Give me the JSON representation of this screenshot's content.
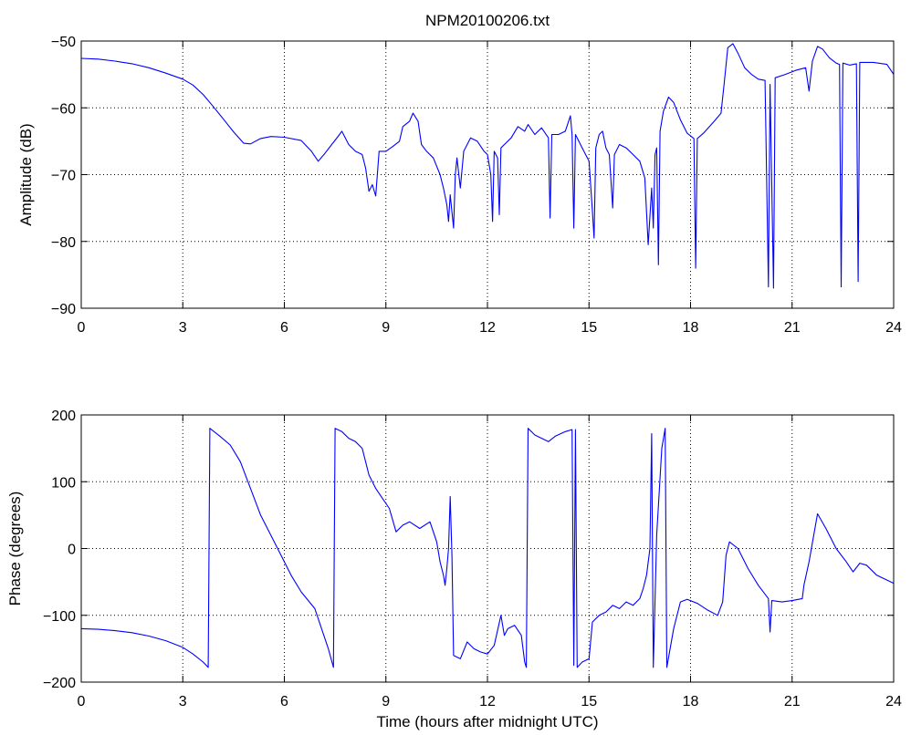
{
  "figure": {
    "title": "NPM20100206.txt",
    "xlabel": "Time (hours after midnight UTC)"
  },
  "chart_data": [
    {
      "type": "line",
      "title": "NPM20100206.txt",
      "xlabel": "",
      "ylabel": "Amplitude (dB)",
      "xlim": [
        0,
        24
      ],
      "ylim": [
        -90,
        -50
      ],
      "xticks": [
        0,
        3,
        6,
        9,
        12,
        15,
        18,
        21,
        24
      ],
      "yticks": [
        -90,
        -80,
        -70,
        -60,
        -50
      ],
      "grid": true,
      "line_color": "#0000ff",
      "series": [
        {
          "values": [
            [
              0,
              -52.6
            ],
            [
              0.5,
              -52.7
            ],
            [
              1,
              -53.0
            ],
            [
              1.5,
              -53.4
            ],
            [
              2,
              -54.0
            ],
            [
              2.5,
              -54.8
            ],
            [
              3,
              -55.7
            ],
            [
              3.3,
              -56.6
            ],
            [
              3.6,
              -58.0
            ],
            [
              3.9,
              -59.8
            ],
            [
              4.2,
              -61.7
            ],
            [
              4.5,
              -63.6
            ],
            [
              4.8,
              -65.3
            ],
            [
              5.0,
              -65.4
            ],
            [
              5.3,
              -64.6
            ],
            [
              5.6,
              -64.3
            ],
            [
              6.0,
              -64.4
            ],
            [
              6.5,
              -64.9
            ],
            [
              6.8,
              -66.5
            ],
            [
              7.0,
              -68.0
            ],
            [
              7.2,
              -66.8
            ],
            [
              7.4,
              -65.5
            ],
            [
              7.6,
              -64.2
            ],
            [
              7.7,
              -63.5
            ],
            [
              7.9,
              -65.5
            ],
            [
              8.1,
              -66.5
            ],
            [
              8.3,
              -67.0
            ],
            [
              8.4,
              -69.0
            ],
            [
              8.5,
              -72.5
            ],
            [
              8.6,
              -71.5
            ],
            [
              8.7,
              -73.2
            ],
            [
              8.8,
              -66.5
            ],
            [
              9.0,
              -66.5
            ],
            [
              9.2,
              -65.8
            ],
            [
              9.4,
              -65.0
            ],
            [
              9.5,
              -62.8
            ],
            [
              9.7,
              -62.0
            ],
            [
              9.8,
              -60.8
            ],
            [
              9.95,
              -62.0
            ],
            [
              10.05,
              -65.5
            ],
            [
              10.2,
              -66.5
            ],
            [
              10.4,
              -67.5
            ],
            [
              10.6,
              -70.0
            ],
            [
              10.7,
              -72.0
            ],
            [
              10.8,
              -74.5
            ],
            [
              10.85,
              -77.0
            ],
            [
              10.9,
              -73.0
            ],
            [
              11.0,
              -78.0
            ],
            [
              11.05,
              -70.0
            ],
            [
              11.1,
              -67.5
            ],
            [
              11.2,
              -72.0
            ],
            [
              11.3,
              -66.5
            ],
            [
              11.5,
              -64.5
            ],
            [
              11.7,
              -65.0
            ],
            [
              11.9,
              -66.5
            ],
            [
              12.0,
              -67.0
            ],
            [
              12.1,
              -70.0
            ],
            [
              12.15,
              -77.0
            ],
            [
              12.2,
              -66.5
            ],
            [
              12.3,
              -67.5
            ],
            [
              12.35,
              -76.0
            ],
            [
              12.4,
              -66.0
            ],
            [
              12.5,
              -65.5
            ],
            [
              12.7,
              -64.5
            ],
            [
              12.9,
              -62.8
            ],
            [
              13.1,
              -63.5
            ],
            [
              13.2,
              -62.5
            ],
            [
              13.4,
              -64.0
            ],
            [
              13.6,
              -63.0
            ],
            [
              13.8,
              -64.5
            ],
            [
              13.85,
              -76.5
            ],
            [
              13.9,
              -64.0
            ],
            [
              14.1,
              -64.0
            ],
            [
              14.3,
              -63.5
            ],
            [
              14.45,
              -61.2
            ],
            [
              14.5,
              -64.0
            ],
            [
              14.55,
              -78.0
            ],
            [
              14.6,
              -64.0
            ],
            [
              14.8,
              -66.0
            ],
            [
              15.0,
              -68.0
            ],
            [
              15.1,
              -75.5
            ],
            [
              15.15,
              -79.5
            ],
            [
              15.2,
              -66.0
            ],
            [
              15.3,
              -64.0
            ],
            [
              15.4,
              -63.5
            ],
            [
              15.5,
              -66.0
            ],
            [
              15.6,
              -67.0
            ],
            [
              15.7,
              -75.0
            ],
            [
              15.75,
              -67.0
            ],
            [
              15.9,
              -65.5
            ],
            [
              16.1,
              -66.0
            ],
            [
              16.3,
              -67.0
            ],
            [
              16.5,
              -68.0
            ],
            [
              16.65,
              -70.5
            ],
            [
              16.75,
              -80.5
            ],
            [
              16.85,
              -72.0
            ],
            [
              16.9,
              -78.0
            ],
            [
              16.95,
              -67.0
            ],
            [
              17.0,
              -66.0
            ],
            [
              17.05,
              -83.5
            ],
            [
              17.1,
              -63.5
            ],
            [
              17.2,
              -60.5
            ],
            [
              17.35,
              -58.4
            ],
            [
              17.5,
              -59.2
            ],
            [
              17.7,
              -61.8
            ],
            [
              17.9,
              -63.8
            ],
            [
              18.1,
              -64.6
            ],
            [
              18.15,
              -84.0
            ],
            [
              18.2,
              -64.6
            ],
            [
              18.4,
              -63.7
            ],
            [
              18.7,
              -62.0
            ],
            [
              18.9,
              -60.8
            ],
            [
              19.0,
              -56.0
            ],
            [
              19.1,
              -51.0
            ],
            [
              19.25,
              -50.4
            ],
            [
              19.4,
              -51.8
            ],
            [
              19.6,
              -54.0
            ],
            [
              19.8,
              -55.0
            ],
            [
              20.0,
              -55.7
            ],
            [
              20.2,
              -55.9
            ],
            [
              20.3,
              -86.8
            ],
            [
              20.35,
              -56.5
            ],
            [
              20.45,
              -87.0
            ],
            [
              20.5,
              -55.5
            ],
            [
              20.8,
              -55.0
            ],
            [
              21.1,
              -54.4
            ],
            [
              21.4,
              -54.0
            ],
            [
              21.5,
              -57.5
            ],
            [
              21.6,
              -53.0
            ],
            [
              21.75,
              -50.8
            ],
            [
              21.9,
              -51.2
            ],
            [
              22.1,
              -52.5
            ],
            [
              22.3,
              -53.3
            ],
            [
              22.4,
              -53.5
            ],
            [
              22.45,
              -86.8
            ],
            [
              22.5,
              -53.3
            ],
            [
              22.7,
              -53.6
            ],
            [
              22.9,
              -53.4
            ],
            [
              22.95,
              -86.0
            ],
            [
              23.0,
              -53.2
            ],
            [
              23.4,
              -53.2
            ],
            [
              23.8,
              -53.5
            ],
            [
              24.0,
              -55.0
            ]
          ]
        }
      ]
    },
    {
      "type": "line",
      "title": "",
      "xlabel": "Time (hours after midnight UTC)",
      "ylabel": "Phase (degrees)",
      "xlim": [
        0,
        24
      ],
      "ylim": [
        -200,
        200
      ],
      "xticks": [
        0,
        3,
        6,
        9,
        12,
        15,
        18,
        21,
        24
      ],
      "yticks": [
        -200,
        -100,
        0,
        100,
        200
      ],
      "grid": true,
      "line_color": "#0000ff",
      "series": [
        {
          "values": [
            [
              0,
              -120
            ],
            [
              0.5,
              -121
            ],
            [
              1,
              -123
            ],
            [
              1.5,
              -126
            ],
            [
              2,
              -131
            ],
            [
              2.5,
              -138
            ],
            [
              3,
              -148
            ],
            [
              3.3,
              -158
            ],
            [
              3.6,
              -170
            ],
            [
              3.75,
              -178
            ],
            [
              3.8,
              180
            ],
            [
              4.1,
              168
            ],
            [
              4.4,
              155
            ],
            [
              4.7,
              130
            ],
            [
              5.0,
              90
            ],
            [
              5.3,
              50
            ],
            [
              5.6,
              20
            ],
            [
              5.9,
              -10
            ],
            [
              6.2,
              -40
            ],
            [
              6.5,
              -65
            ],
            [
              6.9,
              -90
            ],
            [
              7.1,
              -120
            ],
            [
              7.3,
              -150
            ],
            [
              7.45,
              -178
            ],
            [
              7.5,
              180
            ],
            [
              7.7,
              175
            ],
            [
              7.9,
              165
            ],
            [
              8.1,
              160
            ],
            [
              8.3,
              150
            ],
            [
              8.5,
              110
            ],
            [
              8.7,
              90
            ],
            [
              8.9,
              75
            ],
            [
              9.1,
              60
            ],
            [
              9.3,
              25
            ],
            [
              9.5,
              35
            ],
            [
              9.7,
              40
            ],
            [
              10.0,
              30
            ],
            [
              10.3,
              40
            ],
            [
              10.5,
              10
            ],
            [
              10.6,
              -20
            ],
            [
              10.7,
              -40
            ],
            [
              10.75,
              -55
            ],
            [
              10.8,
              -30
            ],
            [
              10.85,
              0
            ],
            [
              10.9,
              78
            ],
            [
              10.95,
              -10
            ],
            [
              11.0,
              -160
            ],
            [
              11.2,
              -165
            ],
            [
              11.4,
              -140
            ],
            [
              11.6,
              -150
            ],
            [
              11.8,
              -155
            ],
            [
              12.0,
              -158
            ],
            [
              12.2,
              -145
            ],
            [
              12.4,
              -100
            ],
            [
              12.5,
              -130
            ],
            [
              12.6,
              -120
            ],
            [
              12.8,
              -115
            ],
            [
              13.0,
              -130
            ],
            [
              13.1,
              -170
            ],
            [
              13.15,
              -178
            ],
            [
              13.2,
              180
            ],
            [
              13.4,
              170
            ],
            [
              13.6,
              165
            ],
            [
              13.8,
              160
            ],
            [
              14.0,
              168
            ],
            [
              14.3,
              175
            ],
            [
              14.5,
              178
            ],
            [
              14.55,
              -175
            ],
            [
              14.6,
              178
            ],
            [
              14.65,
              -178
            ],
            [
              14.8,
              -170
            ],
            [
              15.0,
              -165
            ],
            [
              15.1,
              -110
            ],
            [
              15.3,
              -100
            ],
            [
              15.5,
              -95
            ],
            [
              15.7,
              -85
            ],
            [
              15.9,
              -90
            ],
            [
              16.1,
              -80
            ],
            [
              16.3,
              -85
            ],
            [
              16.5,
              -75
            ],
            [
              16.6,
              -60
            ],
            [
              16.7,
              -40
            ],
            [
              16.8,
              0
            ],
            [
              16.85,
              172
            ],
            [
              16.9,
              -178
            ],
            [
              17.0,
              20
            ],
            [
              17.15,
              150
            ],
            [
              17.25,
              180
            ],
            [
              17.3,
              -178
            ],
            [
              17.5,
              -120
            ],
            [
              17.7,
              -80
            ],
            [
              17.9,
              -76
            ],
            [
              18.2,
              -82
            ],
            [
              18.5,
              -92
            ],
            [
              18.8,
              -100
            ],
            [
              18.95,
              -80
            ],
            [
              19.05,
              -10
            ],
            [
              19.15,
              10
            ],
            [
              19.4,
              0
            ],
            [
              19.7,
              -30
            ],
            [
              20.0,
              -55
            ],
            [
              20.3,
              -75
            ],
            [
              20.35,
              -125
            ],
            [
              20.4,
              -78
            ],
            [
              20.7,
              -80
            ],
            [
              21.0,
              -78
            ],
            [
              21.3,
              -75
            ],
            [
              21.35,
              -55
            ],
            [
              21.5,
              -20
            ],
            [
              21.75,
              52
            ],
            [
              22.0,
              30
            ],
            [
              22.3,
              0
            ],
            [
              22.6,
              -20
            ],
            [
              22.8,
              -35
            ],
            [
              23.0,
              -22
            ],
            [
              23.2,
              -25
            ],
            [
              23.5,
              -40
            ],
            [
              24.0,
              -52
            ]
          ]
        }
      ]
    }
  ]
}
